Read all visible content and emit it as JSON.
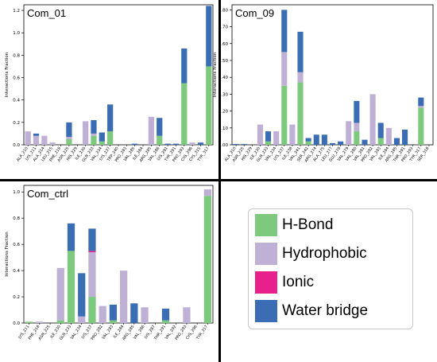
{
  "colors": {
    "hbond": "#7dc97d",
    "hydrophobic": "#bfb0d6",
    "ionic": "#e8208c",
    "water": "#3a6db3"
  },
  "legend": {
    "items": [
      {
        "label": "H-Bond",
        "color": "#7dc97d"
      },
      {
        "label": "Hydrophobic",
        "color": "#bfb0d6"
      },
      {
        "label": "Ionic",
        "color": "#e8208c"
      },
      {
        "label": "Water bridge",
        "color": "#3a6db3"
      }
    ]
  },
  "chart_data": [
    {
      "type": "bar",
      "stacked": true,
      "title": "Com_01",
      "ylabel": "Interactions Fraction",
      "ylim": [
        0,
        1.25
      ],
      "yticks": [
        0.0,
        0.2,
        0.4,
        0.6,
        0.8,
        1.0,
        1.2
      ],
      "categories": [
        "ALA_210",
        "LYS_211",
        "ALA_214",
        "LEU_215",
        "PHE_218",
        "ASN_225",
        "HIS_229",
        "ILE_230",
        "GLN_233",
        "VAL_234",
        "LYS_237",
        "TRP_240",
        "PRO_283",
        "VAL_285",
        "ILE_284",
        "ARG_285",
        "VAL_286",
        "LYS_291",
        "TYR_291",
        "PRO_293",
        "CYS_296",
        "CYS_315",
        "TYR_317"
      ],
      "series": [
        {
          "name": "H-Bond",
          "values": [
            0,
            0,
            0,
            0,
            0,
            0.05,
            0,
            0,
            0.08,
            0.03,
            0.12,
            0,
            0,
            0,
            0,
            0,
            0.08,
            0,
            0,
            0.55,
            0,
            0,
            0.7
          ]
        },
        {
          "name": "Hydrophobic",
          "values": [
            0.12,
            0.08,
            0.08,
            0.02,
            0,
            0.02,
            0,
            0.21,
            0.02,
            0,
            0,
            0,
            0,
            0,
            0,
            0.25,
            0,
            0,
            0,
            0,
            0.02,
            0,
            0
          ]
        },
        {
          "name": "Ionic",
          "values": [
            0,
            0,
            0,
            0,
            0,
            0,
            0,
            0,
            0,
            0,
            0,
            0,
            0,
            0,
            0,
            0,
            0,
            0,
            0,
            0,
            0,
            0,
            0
          ]
        },
        {
          "name": "Water bridge",
          "values": [
            0,
            0.02,
            0,
            0,
            0,
            0.13,
            0,
            0,
            0.12,
            0.08,
            0.24,
            0,
            0,
            0.01,
            0,
            0,
            0.16,
            0.01,
            0.01,
            0.31,
            0,
            0.02,
            0.54
          ]
        }
      ]
    },
    {
      "type": "bar",
      "stacked": true,
      "title": "Com_09",
      "ylabel": "Interactions Fraction",
      "ylim": [
        0,
        0.83
      ],
      "yticks": [
        0.0,
        0.1,
        0.2,
        0.3,
        0.4,
        0.5,
        0.6,
        0.7,
        0.8
      ],
      "categories": [
        "ALA_210",
        "ASN_225",
        "HIS_229",
        "ILE_230",
        "GLN_233",
        "VAL_234",
        "LYS_237",
        "ILE_238",
        "VAL_241",
        "SER_242",
        "ARG_274",
        "ALA_275",
        "LEU_277",
        "GLU_278",
        "VAL_279",
        "VAL_280",
        "VAL_281",
        "PRO_282",
        "VAL_283",
        "ILE_284",
        "ARG_285",
        "THR_291",
        "PRO_293",
        "TYR_317",
        "SER_318"
      ],
      "series": [
        {
          "name": "H-Bond",
          "values": [
            0,
            0,
            0,
            0,
            0.02,
            0,
            0.35,
            0,
            0.37,
            0.02,
            0,
            0,
            0,
            0,
            0,
            0.08,
            0,
            0,
            0.04,
            0,
            0,
            0,
            0,
            0.22,
            0
          ]
        },
        {
          "name": "Hydrophobic",
          "values": [
            0,
            0,
            0,
            0.12,
            0,
            0.08,
            0.2,
            0.12,
            0.06,
            0,
            0,
            0,
            0,
            0,
            0.14,
            0.05,
            0,
            0.3,
            0,
            0.1,
            0,
            0,
            0,
            0.01,
            0
          ]
        },
        {
          "name": "Ionic",
          "values": [
            0,
            0,
            0,
            0,
            0,
            0,
            0,
            0,
            0,
            0,
            0,
            0,
            0,
            0,
            0,
            0,
            0,
            0,
            0,
            0,
            0,
            0,
            0,
            0,
            0
          ]
        },
        {
          "name": "Water bridge",
          "values": [
            0.005,
            0.005,
            0,
            0,
            0.06,
            0,
            0.25,
            0,
            0.24,
            0.02,
            0.06,
            0.06,
            0.01,
            0.02,
            0,
            0.13,
            0.03,
            0,
            0.09,
            0,
            0.04,
            0.09,
            0,
            0.05,
            0
          ]
        }
      ]
    },
    {
      "type": "bar",
      "stacked": true,
      "title": "Com_ctrl",
      "ylabel": "Interactions Fraction",
      "ylim": [
        0,
        1.05
      ],
      "yticks": [
        0.0,
        0.2,
        0.4,
        0.6,
        0.8,
        1.0
      ],
      "categories": [
        "LYS_211",
        "PHE_218",
        "ASN_225",
        "ILE_230",
        "GLN_233",
        "VAL_234",
        "LYS_237",
        "PRO_282",
        "VAL_283",
        "ILE_284",
        "ARG_285",
        "VAL_286",
        "LYS_287",
        "THR_291",
        "VAL_292",
        "PRO_293",
        "CYS_296",
        "TYR_317"
      ],
      "series": [
        {
          "name": "H-Bond",
          "values": [
            0.01,
            0,
            0,
            0.02,
            0.55,
            0,
            0.2,
            0,
            0.02,
            0,
            0,
            0,
            0,
            0.02,
            0,
            0,
            0,
            0.97
          ]
        },
        {
          "name": "Hydrophobic",
          "values": [
            0,
            0.01,
            0,
            0.4,
            0,
            0.05,
            0.34,
            0.13,
            0,
            0.4,
            0,
            0.12,
            0,
            0,
            0,
            0.12,
            0,
            0.05
          ]
        },
        {
          "name": "Ionic",
          "values": [
            0,
            0,
            0,
            0,
            0,
            0,
            0.01,
            0,
            0,
            0,
            0,
            0,
            0,
            0,
            0,
            0,
            0,
            0
          ]
        },
        {
          "name": "Water bridge",
          "values": [
            0,
            0,
            0,
            0,
            0.21,
            0.33,
            0.17,
            0,
            0.12,
            0,
            0.15,
            0,
            0,
            0.09,
            0,
            0,
            0,
            0
          ]
        }
      ]
    }
  ]
}
